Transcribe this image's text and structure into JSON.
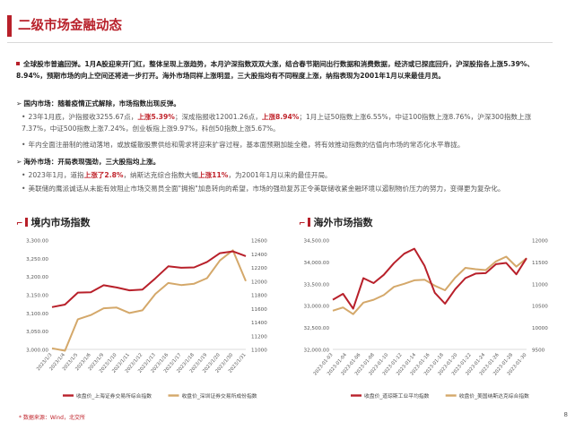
{
  "header": {
    "title": "二级市场金融动态"
  },
  "summary": {
    "text": "全球股市普遍回弹。1月A股迎来开门红，整体呈现上涨趋势，本月沪深指数双双大涨，结合春节期间出行数据和消费数据，经济或已探底回升，沪深股指各上涨5.39%、8.94%，预期市场的向上空间还将进一步打开。海外市场同样上涨明显，三大股指均有不同程度上涨，纳指表现为2001年1月以来最佳月员。"
  },
  "domestic": {
    "heading": "国内市场：随着疫情正式解除，市场指数出现反弹。",
    "b1_a": "23年1月底，沪指报收3255.67点，",
    "b1_red1": "上涨5.39%",
    "b1_b": "；深成指报收12001.26点，",
    "b1_red2": "上涨8.94%",
    "b1_c": "；1月上证50指数上涨6.55%，中证100指数上涨8.76%，沪深300指数上涨7.37%，中证500指数上涨7.24%，创业板指上涨9.97%，科创50指数上涨5.67%。",
    "b2": "年内全面注册制的推动落地，或放缓散股票供给和需求将迎来扩容过程，基本面预期加能全稳，将有效推动指数的估值向市场的常态化水平靠拢。"
  },
  "overseas": {
    "heading": "海外市场：开局表现强劲，三大股指均上涨。",
    "b1_a": "2023年1月，道指",
    "b1_red1": "上涨了2.8%",
    "b1_b": "，纳斯达克综合指数大幅",
    "b1_red2": "上涨11%",
    "b1_c": "，为2001年1月以来的最佳开局。",
    "b2": "美联储的鹰派诚话从未能有效阻止市场交易员全面\"拥抱\"加息转向的希望，市场的强劲复苏正令美联储收紧金融环境以遏制物价压力的努力，变得更为复杂化。"
  },
  "chart_data": [
    {
      "type": "line",
      "title": "境内市场指数",
      "x": [
        "2023/1/3",
        "2023/1/4",
        "2023/1/5",
        "2023/1/6",
        "2023/1/9",
        "2023/1/10",
        "2023/1/11",
        "2023/1/12",
        "2023/1/13",
        "2023/1/16",
        "2023/1/17",
        "2023/1/18",
        "2023/1/19",
        "2023/1/20",
        "2023/1/30",
        "2023/1/31"
      ],
      "x_ticks": [
        "2023/1/3",
        "2023/1/4",
        "2023/1/5",
        "2023/1/6",
        "2023/1/9",
        "2023/1/10",
        "2023/1/11",
        "2023/1/12",
        "2023/1/13",
        "2023/1/16",
        "2023/1/17",
        "2023/1/18",
        "2023/1/19",
        "2023/1/20",
        "2023/1/30",
        "2023/1/31"
      ],
      "series": [
        {
          "name": "收盘价_上海证券交易所综合指数",
          "axis": "left",
          "color": "#b8202a",
          "values": [
            3116,
            3123,
            3156,
            3157,
            3176,
            3170,
            3162,
            3164,
            3195,
            3228,
            3224,
            3225,
            3240,
            3264,
            3269,
            3256
          ]
        },
        {
          "name": "收盘价_深圳证券交易所成份指数",
          "axis": "right",
          "color": "#d4a86a",
          "values": [
            11016,
            10980,
            11440,
            11502,
            11602,
            11612,
            11532,
            11572,
            11812,
            11972,
            11942,
            11961,
            12042,
            12302,
            12450,
            12001
          ]
        }
      ],
      "y_left": {
        "ticks": [
          "3,000.00",
          "3,050.00",
          "3,100.00",
          "3,150.00",
          "3,200.00",
          "3,250.00",
          "3,300.00"
        ],
        "range": [
          3000,
          3300
        ]
      },
      "y_right": {
        "ticks": [
          "11000",
          "11200",
          "11400",
          "11600",
          "11800",
          "12000",
          "12200",
          "12400",
          "12600"
        ],
        "range": [
          11000,
          12600
        ]
      }
    },
    {
      "type": "line",
      "title": "海外市场指数",
      "x": [
        "2023-01-03",
        "2023-01-04",
        "2023-01-05",
        "2023-01-06",
        "2023-01-09",
        "2023-01-10",
        "2023-01-11",
        "2023-01-12",
        "2023-01-13",
        "2023-01-17",
        "2023-01-18",
        "2023-01-19",
        "2023-01-20",
        "2023-01-23",
        "2023-01-24",
        "2023-01-25",
        "2023-01-26",
        "2023-01-27",
        "2023-01-30",
        "2023-01-31"
      ],
      "x_ticks": [
        "2023-01-03",
        "2023-01-04",
        "2023-01-06",
        "2023-01-08",
        "2023-01-10",
        "2023-01-12",
        "2023-01-14",
        "2023-01-16",
        "2023-01-18",
        "2023-01-20",
        "2023-01-22",
        "2023-01-24",
        "2023-01-26",
        "2023-01-28",
        "2023-01-30"
      ],
      "series": [
        {
          "name": "收盘价_道琼斯工业平均指数",
          "axis": "left",
          "color": "#b8202a",
          "values": [
            33136,
            33270,
            32930,
            33630,
            33517,
            33704,
            33973,
            34189,
            34303,
            33910,
            33296,
            33045,
            33375,
            33629,
            33733,
            33744,
            33949,
            33978,
            33717,
            34086
          ]
        },
        {
          "name": "收盘价_美国纳斯达克综合指数",
          "axis": "right",
          "color": "#d4a86a",
          "values": [
            10386,
            10459,
            10305,
            10569,
            10636,
            10742,
            10931,
            11001,
            11079,
            11095,
            10957,
            10852,
            11140,
            11364,
            11334,
            11313,
            11512,
            11621,
            11393,
            11584
          ]
        }
      ],
      "y_left": {
        "ticks": [
          "32,000.00",
          "32,500.00",
          "33,000.00",
          "33,500.00",
          "34,000.00",
          "34,500.00"
        ],
        "range": [
          32000,
          34500
        ]
      },
      "y_right": {
        "ticks": [
          "9500",
          "10000",
          "10500",
          "11000",
          "11500",
          "12000"
        ],
        "range": [
          9500,
          12000
        ]
      }
    }
  ],
  "footer": {
    "source": "* 数据来源：Wind，北交所",
    "page": "8"
  }
}
